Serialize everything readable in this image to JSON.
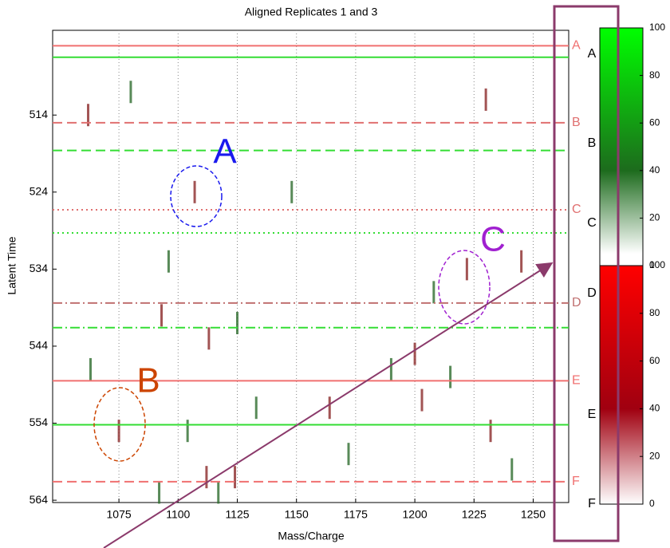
{
  "chart_data": {
    "type": "aligned-replicates",
    "title": "Aligned Replicates 1 and 3",
    "x_label": "Mass/Charge",
    "y_label": "Latent Time",
    "xlim": [
      1047,
      1265
    ],
    "ylim": [
      503,
      564.3
    ],
    "xticks": [
      1075,
      1100,
      1125,
      1150,
      1175,
      1200,
      1225,
      1250
    ],
    "yticks": [
      514,
      524,
      534,
      544,
      554,
      564
    ],
    "reference_lines": [
      {
        "value": 505,
        "color": "#f07070",
        "dash": "solid",
        "label": "A"
      },
      {
        "value": 506.5,
        "color": "#33dd33",
        "dash": "solid"
      },
      {
        "value": 515,
        "color": "#e07070",
        "dash": "dashed",
        "label": "B"
      },
      {
        "value": 518.6,
        "color": "#33dd33",
        "dash": "dashed"
      },
      {
        "value": 526.3,
        "color": "#e07070",
        "dash": "dotted",
        "label": "C"
      },
      {
        "value": 529.3,
        "color": "#33dd33",
        "dash": "dotted"
      },
      {
        "value": 538.4,
        "color": "#c07070",
        "dash": "dashdot",
        "label": "D"
      },
      {
        "value": 541.6,
        "color": "#33dd33",
        "dash": "dashdot"
      },
      {
        "value": 548.5,
        "color": "#f07070",
        "dash": "solid",
        "label": "E"
      },
      {
        "value": 554.2,
        "color": "#33dd33",
        "dash": "solid"
      },
      {
        "value": 561.6,
        "color": "#f07070",
        "dash": "dashed",
        "label": "F"
      }
    ],
    "peaks": {
      "x": [
        1062,
        1080,
        1107,
        1096,
        1093,
        1148,
        1230,
        1208,
        1222,
        1125,
        1113,
        1133,
        1164,
        1190,
        1203,
        1215,
        1075,
        1104,
        1112,
        1117,
        1124,
        1172,
        1232,
        1241,
        1245,
        1063,
        1200,
        1092
      ],
      "y": [
        514,
        511,
        524,
        533,
        540,
        524,
        512,
        537,
        534,
        541,
        543,
        552,
        552,
        547,
        551,
        548,
        555,
        555,
        561,
        563,
        561,
        558,
        555,
        560,
        533,
        547,
        545,
        563
      ]
    },
    "annotations": [
      {
        "label": "A",
        "color": "#1a1aee"
      },
      {
        "label": "B",
        "color": "#cc4400"
      },
      {
        "label": "C",
        "color": "#a020d0"
      }
    ],
    "colorbar": [
      {
        "color": "#00ff00",
        "ticks": [
          0,
          20,
          40,
          60,
          80,
          100
        ]
      },
      {
        "color": "#ff0000",
        "ticks": [
          0,
          20,
          40,
          60,
          80,
          100
        ]
      }
    ],
    "colorbar_labels": [
      "A",
      "B",
      "C",
      "D",
      "E",
      "F"
    ]
  }
}
